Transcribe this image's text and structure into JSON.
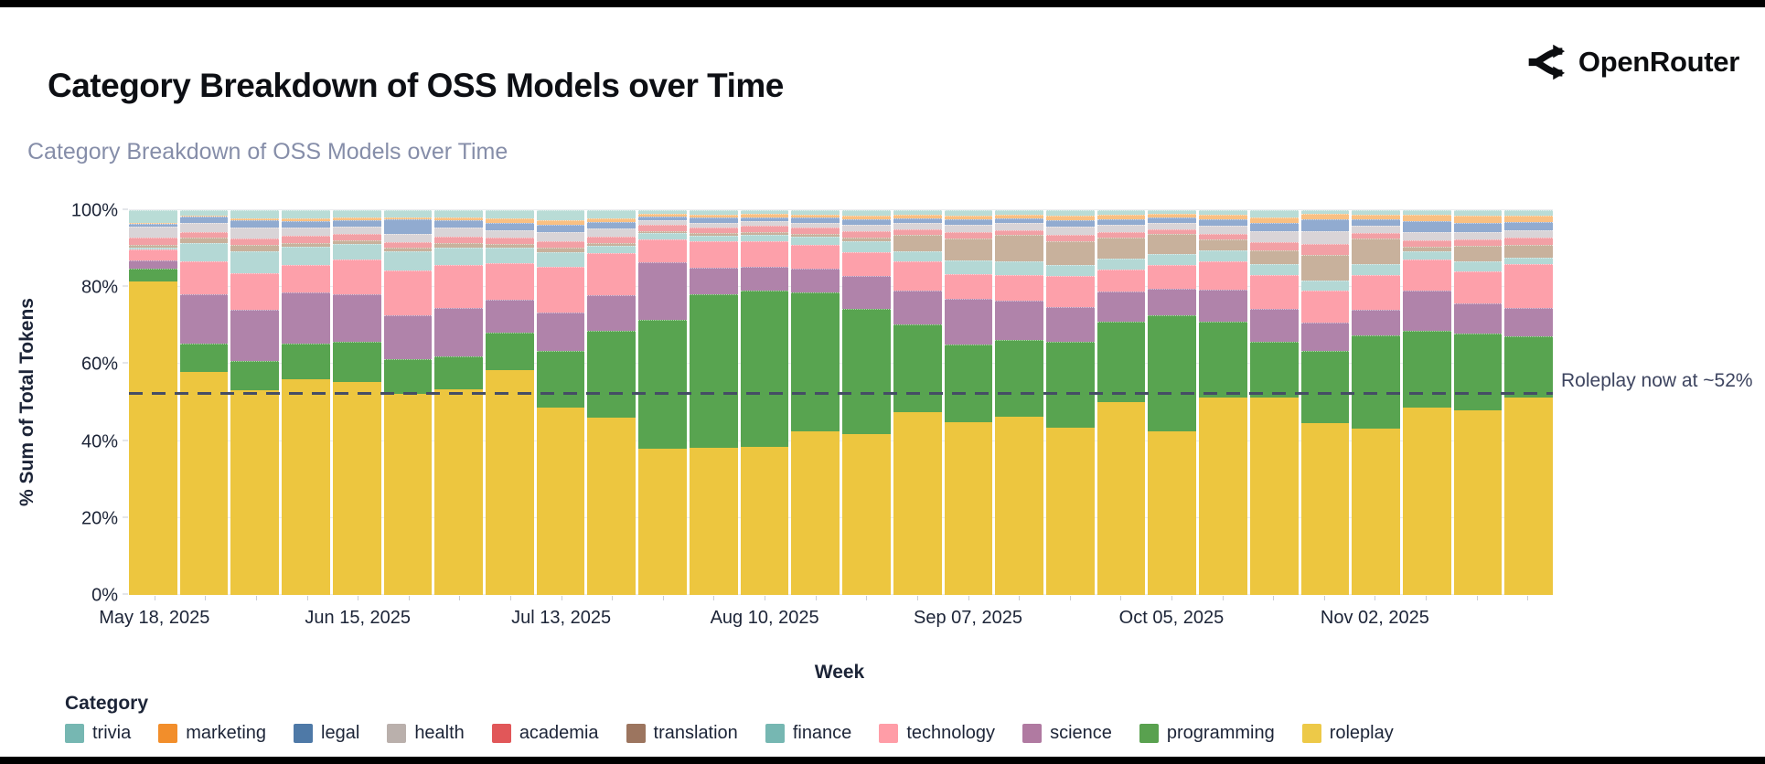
{
  "header": {
    "title": "Category Breakdown of OSS Models over Time",
    "brand": "OpenRouter"
  },
  "chart": {
    "subtitle": "Category Breakdown of OSS Models over Time",
    "y_axis_title": "% Sum of Total Tokens",
    "x_axis_title": "Week",
    "y_ticks": [
      "0%",
      "20%",
      "40%",
      "60%",
      "80%",
      "100%"
    ],
    "legend_title": "Category",
    "annotation": "Roleplay now at ~52%",
    "annotation_value": 52,
    "colors": {
      "grid": "#ebecef",
      "axis_text": "#1c2437",
      "subtitle_text": "#868ea9",
      "annotation_line": "#454d65",
      "annotation_text": "#3e4560"
    }
  },
  "chart_data": {
    "type": "bar",
    "stacked": true,
    "title": "Category Breakdown of OSS Models over Time",
    "xlabel": "Week",
    "ylabel": "% Sum of Total Tokens",
    "ylim": [
      0,
      100
    ],
    "n_bars": 28,
    "x_unit": "week",
    "x_ticks": [
      {
        "index": 0,
        "label": "May 18, 2025"
      },
      {
        "index": 4,
        "label": "Jun 15, 2025"
      },
      {
        "index": 8,
        "label": "Jul 13, 2025"
      },
      {
        "index": 12,
        "label": "Aug 10, 2025"
      },
      {
        "index": 16,
        "label": "Sep 07, 2025"
      },
      {
        "index": 20,
        "label": "Oct 05, 2025"
      },
      {
        "index": 24,
        "label": "Nov 02, 2025"
      }
    ],
    "stack_order_bottom_to_top": [
      "roleplay",
      "programming",
      "science",
      "technology",
      "finance",
      "translation",
      "academia",
      "health",
      "legal",
      "marketing",
      "trivia"
    ],
    "legend_order": [
      "trivia",
      "marketing",
      "legal",
      "health",
      "academia",
      "translation",
      "finance",
      "technology",
      "science",
      "programming",
      "roleplay"
    ],
    "series": [
      {
        "name": "roleplay",
        "bar_color": "#edc63f",
        "legend_color": "#edc948",
        "values": [
          81.5,
          58.0,
          53.2,
          56.1,
          55.4,
          52.3,
          53.5,
          58.5,
          48.8,
          46.2,
          38.0,
          38.2,
          38.6,
          42.6,
          41.8,
          47.5,
          44.9,
          46.3,
          43.5,
          50.1,
          42.6,
          51.2,
          51.3,
          44.6,
          43.2,
          48.7,
          48.1,
          51.3
        ]
      },
      {
        "name": "programming",
        "bar_color": "#58a450",
        "legend_color": "#59a14f",
        "values": [
          3.5,
          7.4,
          7.6,
          9.2,
          10.4,
          8.9,
          8.5,
          9.6,
          14.6,
          22.4,
          33.6,
          40.0,
          40.5,
          36.0,
          32.5,
          22.8,
          20.2,
          20.0,
          22.4,
          20.9,
          30.0,
          19.8,
          14.5,
          18.8,
          24.2,
          19.9,
          19.8,
          15.9
        ]
      },
      {
        "name": "science",
        "bar_color": "#b083aa",
        "legend_color": "#b07aa1",
        "values": [
          2.0,
          12.8,
          13.3,
          13.3,
          12.4,
          11.5,
          12.6,
          8.6,
          9.9,
          9.3,
          14.9,
          6.8,
          6.1,
          6.2,
          8.7,
          8.8,
          11.9,
          10.2,
          9.0,
          7.9,
          6.9,
          8.3,
          8.5,
          7.4,
          6.7,
          10.5,
          7.9,
          7.4
        ]
      },
      {
        "name": "technology",
        "bar_color": "#fda0aa",
        "legend_color": "#ff9da7",
        "values": [
          2.8,
          8.6,
          9.5,
          7.1,
          9.0,
          11.6,
          11.1,
          9.5,
          11.9,
          10.9,
          5.8,
          6.9,
          6.7,
          6.3,
          6.1,
          7.6,
          6.4,
          6.6,
          8.1,
          5.7,
          6.3,
          7.4,
          8.8,
          8.3,
          9.1,
          8.0,
          8.3,
          11.3
        ]
      },
      {
        "name": "finance",
        "bar_color": "#b4d8d5",
        "legend_color": "#76b7b2",
        "values": [
          0.5,
          4.8,
          5.7,
          4.8,
          4.1,
          5.0,
          4.6,
          4.0,
          3.9,
          1.9,
          1.7,
          1.5,
          1.7,
          2.1,
          2.8,
          2.6,
          3.6,
          3.6,
          2.8,
          2.8,
          2.8,
          2.8,
          2.9,
          2.6,
          2.7,
          2.2,
          2.6,
          1.7
        ]
      },
      {
        "name": "translation",
        "bar_color": "#c8b19c",
        "legend_color": "#9c755f",
        "values": [
          0.8,
          1.2,
          1.6,
          1.0,
          0.9,
          0.9,
          1.2,
          1.0,
          1.2,
          0.8,
          0.6,
          0.6,
          0.7,
          0.7,
          0.9,
          4.3,
          5.7,
          6.9,
          6.1,
          5.6,
          5.3,
          3.0,
          3.5,
          6.7,
          6.8,
          1.2,
          4.0,
          3.3
        ]
      },
      {
        "name": "academia",
        "bar_color": "#f2a0a5",
        "legend_color": "#e15759",
        "values": [
          1.9,
          1.6,
          1.7,
          1.8,
          1.6,
          1.4,
          1.7,
          1.6,
          1.7,
          1.7,
          1.6,
          1.6,
          1.7,
          1.6,
          1.8,
          1.4,
          1.5,
          1.2,
          1.7,
          1.3,
          1.2,
          1.4,
          2.1,
          2.9,
          1.3,
          1.7,
          1.7,
          2.0
        ]
      },
      {
        "name": "health",
        "bar_color": "#d9d4d7",
        "legend_color": "#bab0ac",
        "values": [
          2.8,
          2.4,
          2.9,
          2.2,
          2.0,
          2.2,
          2.4,
          2.0,
          2.2,
          2.0,
          1.1,
          1.2,
          1.2,
          1.3,
          1.7,
          1.6,
          2.0,
          1.8,
          2.2,
          1.9,
          1.7,
          2.1,
          3.0,
          3.2,
          1.9,
          2.0,
          2.0,
          2.0
        ]
      },
      {
        "name": "legal",
        "bar_color": "#91abd0",
        "legend_color": "#4e79a7",
        "values": [
          0.7,
          1.6,
          1.8,
          1.7,
          1.7,
          3.8,
          1.8,
          2.0,
          2.1,
          1.8,
          1.0,
          1.2,
          1.0,
          1.2,
          1.4,
          1.3,
          1.4,
          1.3,
          1.7,
          1.5,
          1.2,
          1.6,
          2.2,
          3.1,
          1.8,
          3.0,
          2.2,
          2.0
        ]
      },
      {
        "name": "marketing",
        "bar_color": "#f9c083",
        "legend_color": "#f28e2b",
        "values": [
          0.1,
          0.2,
          0.7,
          0.6,
          0.6,
          0.6,
          0.8,
          1.2,
          1.2,
          1.0,
          0.7,
          0.8,
          0.8,
          0.8,
          0.9,
          0.9,
          1.0,
          0.9,
          1.2,
          1.1,
          1.0,
          1.2,
          1.2,
          1.4,
          1.2,
          1.6,
          2.0,
          1.7
        ]
      },
      {
        "name": "trivia",
        "bar_color": "#b9dcd6",
        "legend_color": "#76b7b2",
        "values": [
          3.4,
          1.4,
          2.0,
          2.2,
          1.9,
          1.8,
          1.8,
          2.0,
          2.5,
          2.0,
          1.0,
          1.2,
          1.0,
          1.2,
          1.4,
          1.2,
          1.4,
          1.2,
          1.3,
          1.2,
          1.0,
          1.2,
          2.0,
          1.0,
          1.1,
          1.2,
          1.4,
          1.4
        ]
      }
    ]
  }
}
